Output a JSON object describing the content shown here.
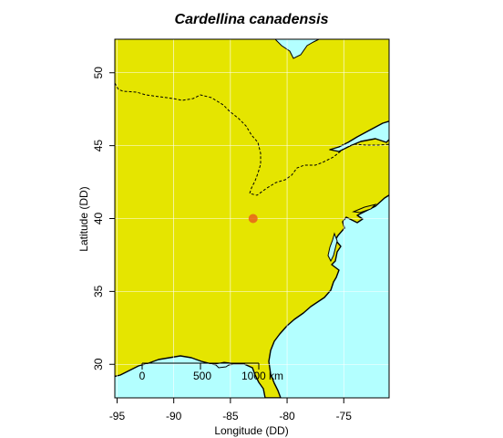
{
  "chart_data": {
    "type": "scatter",
    "title": "Cardellina canadensis",
    "xlabel": "Longitude (DD)",
    "ylabel": "Latitude (DD)",
    "xlim": [
      -95.2,
      -71.0
    ],
    "ylim": [
      27.7,
      52.3
    ],
    "x_ticks": [
      -95,
      -90,
      -85,
      -80,
      -75
    ],
    "y_ticks": [
      30,
      35,
      40,
      45,
      50
    ],
    "grid": true,
    "points": [
      {
        "x": -83.0,
        "y": 40.0
      }
    ],
    "point_color": "#e8611a",
    "land_color": "#e5e500",
    "water_color": "#b3ffff",
    "scale_bar": {
      "labels": [
        "0",
        "500",
        "1000 km"
      ]
    }
  }
}
